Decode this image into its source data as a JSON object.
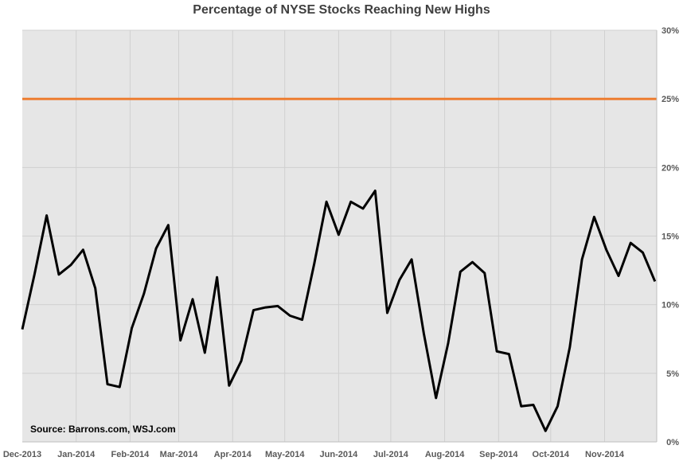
{
  "chart_data": {
    "type": "line",
    "title": "Percentage of NYSE Stocks Reaching New Highs",
    "source": "Source: Barrons.com, WSJ.com",
    "xlabel": "",
    "ylabel": "",
    "x_tick_labels": [
      "Dec-2013",
      "Jan-2014",
      "Feb-2014",
      "Mar-2014",
      "Apr-2014",
      "May-2014",
      "Jun-2014",
      "Jul-2014",
      "Aug-2014",
      "Sep-2014",
      "Oct-2014",
      "Nov-2014"
    ],
    "y_tick_labels": [
      "0%",
      "5%",
      "10%",
      "15%",
      "20%",
      "25%",
      "30%"
    ],
    "ylim": [
      0,
      30
    ],
    "grid": true,
    "plot_background": "#e6e6e6",
    "series": [
      {
        "color": "#000000",
        "x": [
          "2013-12-01",
          "2013-12-08",
          "2013-12-15",
          "2013-12-22",
          "2013-12-29",
          "2014-01-05",
          "2014-01-12",
          "2014-01-19",
          "2014-01-26",
          "2014-02-02",
          "2014-02-09",
          "2014-02-16",
          "2014-02-23",
          "2014-03-02",
          "2014-03-09",
          "2014-03-16",
          "2014-03-23",
          "2014-03-30",
          "2014-04-06",
          "2014-04-13",
          "2014-04-20",
          "2014-04-27",
          "2014-05-04",
          "2014-05-11",
          "2014-05-18",
          "2014-05-25",
          "2014-06-01",
          "2014-06-08",
          "2014-06-15",
          "2014-06-22",
          "2014-06-29",
          "2014-07-06",
          "2014-07-13",
          "2014-07-20",
          "2014-07-27",
          "2014-08-03",
          "2014-08-10",
          "2014-08-17",
          "2014-08-24",
          "2014-08-31",
          "2014-09-07",
          "2014-09-14",
          "2014-09-21",
          "2014-09-28",
          "2014-10-05",
          "2014-10-12",
          "2014-10-19",
          "2014-10-26",
          "2014-11-02",
          "2014-11-09",
          "2014-11-16",
          "2014-11-23",
          "2014-11-30"
        ],
        "values": [
          8.2,
          12.2,
          16.5,
          12.2,
          12.9,
          14.0,
          11.2,
          4.2,
          4.0,
          8.3,
          10.8,
          14.1,
          15.8,
          7.4,
          10.4,
          6.5,
          12.0,
          4.1,
          5.9,
          9.6,
          9.8,
          9.9,
          9.2,
          8.9,
          13.0,
          17.5,
          15.1,
          17.5,
          17.0,
          18.3,
          9.4,
          11.8,
          13.3,
          7.9,
          3.2,
          7.2,
          12.4,
          13.1,
          12.3,
          6.6,
          6.4,
          2.6,
          2.7,
          0.8,
          2.6,
          6.9,
          13.3,
          16.4,
          14.0,
          12.1,
          14.5,
          13.8,
          11.7
        ]
      },
      {
        "color": "#ed7d31",
        "x": [
          "2013-12-01",
          "2014-12-01"
        ],
        "values": [
          25,
          25
        ]
      }
    ]
  }
}
